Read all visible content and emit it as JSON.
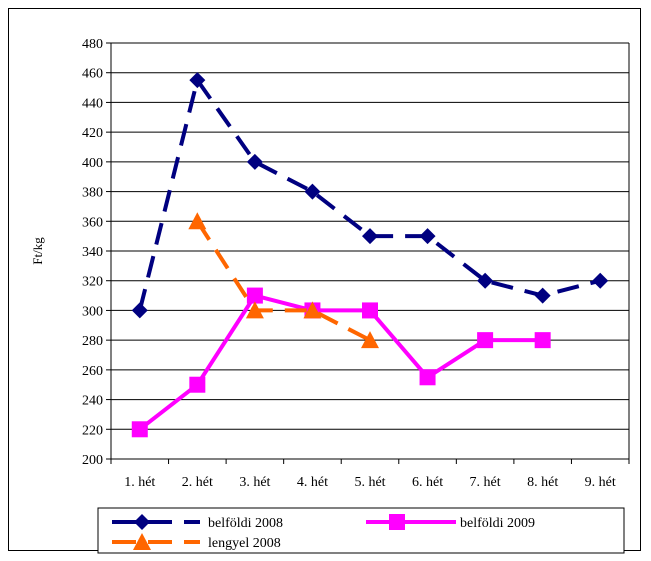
{
  "chart_data": {
    "type": "line",
    "title": "",
    "xlabel": "",
    "ylabel": "Ft/kg",
    "categories": [
      "1. hét",
      "2. hét",
      "3. hét",
      "4. hét",
      "5. hét",
      "6. hét",
      "7. hét",
      "8. hét",
      "9. hét"
    ],
    "ylim": [
      200,
      480
    ],
    "yticks": [
      200,
      220,
      240,
      260,
      280,
      300,
      320,
      340,
      360,
      380,
      400,
      420,
      440,
      460,
      480
    ],
    "grid": "horizontal",
    "legend_position": "bottom",
    "series": [
      {
        "name": "belföldi 2008",
        "color": "#000080",
        "marker": "diamond",
        "dash": true,
        "values": [
          300,
          455,
          400,
          380,
          350,
          350,
          320,
          310,
          320
        ]
      },
      {
        "name": "belföldi 2009",
        "color": "#ff00ff",
        "marker": "square",
        "dash": false,
        "values": [
          220,
          250,
          310,
          300,
          300,
          255,
          280,
          280,
          null
        ]
      },
      {
        "name": "lengyel 2008",
        "color": "#ff6600",
        "marker": "triangle",
        "dash": true,
        "values": [
          null,
          360,
          300,
          300,
          280,
          null,
          null,
          null,
          null
        ]
      }
    ]
  }
}
